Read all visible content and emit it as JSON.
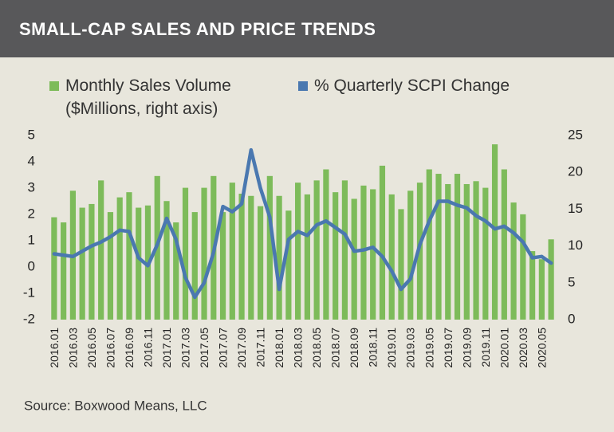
{
  "chart_data": {
    "type": "bar",
    "title": "SMALL-CAP SALES AND PRICE TRENDS",
    "source": "Source: Boxwood Means, LLC",
    "categories": [
      "2016.01",
      null,
      "2016.03",
      null,
      "2016.05",
      null,
      "2016.07",
      null,
      "2016.09",
      null,
      "2016.11",
      null,
      "2017.01",
      null,
      "2017.03",
      null,
      "2017.05",
      null,
      "2017.07",
      null,
      "2017.09",
      null,
      "2017.11",
      null,
      "2018.01",
      null,
      "2018.03",
      null,
      "2018.05",
      null,
      "2018.07",
      null,
      "2018.09",
      null,
      "2018.11",
      null,
      "2019.01",
      null,
      "2019.03",
      null,
      "2019.05",
      null,
      "2019.07",
      null,
      "2019.09",
      null,
      "2019.11",
      null,
      "2020.01",
      null,
      "2020.03",
      null,
      "2020.05",
      null
    ],
    "series": [
      {
        "name": "Monthly Sales Volume ($Millions, right axis)",
        "type": "bar",
        "axis": "y2",
        "color": "#7dbb5a",
        "values": [
          13.9,
          13.2,
          17.5,
          15.2,
          15.7,
          18.9,
          14.6,
          16.6,
          17.3,
          15.2,
          15.5,
          19.5,
          16.1,
          13.2,
          17.9,
          14.6,
          17.9,
          19.5,
          14.6,
          18.6,
          17.1,
          16.8,
          15.4,
          19.5,
          16.8,
          14.8,
          18.6,
          17.0,
          18.9,
          20.4,
          17.3,
          18.9,
          16.4,
          18.2,
          17.7,
          20.9,
          17.0,
          15.0,
          17.5,
          18.6,
          20.4,
          19.8,
          18.4,
          19.8,
          18.4,
          18.8,
          17.9,
          23.8,
          20.4,
          15.9,
          14.3,
          9.3,
          8.2,
          10.9
        ]
      },
      {
        "name": "% Quarterly SCPI Change",
        "type": "line",
        "axis": "y",
        "color": "#4a78b0",
        "values": [
          0.5,
          0.45,
          0.4,
          0.6,
          0.8,
          0.95,
          1.15,
          1.4,
          1.35,
          0.35,
          0.05,
          0.85,
          1.85,
          1.05,
          -0.4,
          -1.15,
          -0.6,
          0.55,
          2.3,
          2.1,
          2.4,
          4.45,
          3.0,
          1.9,
          -0.85,
          1.05,
          1.35,
          1.2,
          1.6,
          1.75,
          1.5,
          1.25,
          0.6,
          0.65,
          0.75,
          0.4,
          -0.15,
          -0.85,
          -0.45,
          0.85,
          1.75,
          2.5,
          2.5,
          2.35,
          2.25,
          1.95,
          1.75,
          1.45,
          1.55,
          1.3,
          0.95,
          0.35,
          0.4,
          0.15
        ]
      }
    ],
    "ylim": [
      -2,
      5
    ],
    "yticks": [
      -2,
      -1,
      0,
      1,
      2,
      3,
      4,
      5
    ],
    "y2lim": [
      0,
      25
    ],
    "y2ticks": [
      0,
      5,
      10,
      15,
      20,
      25
    ]
  }
}
